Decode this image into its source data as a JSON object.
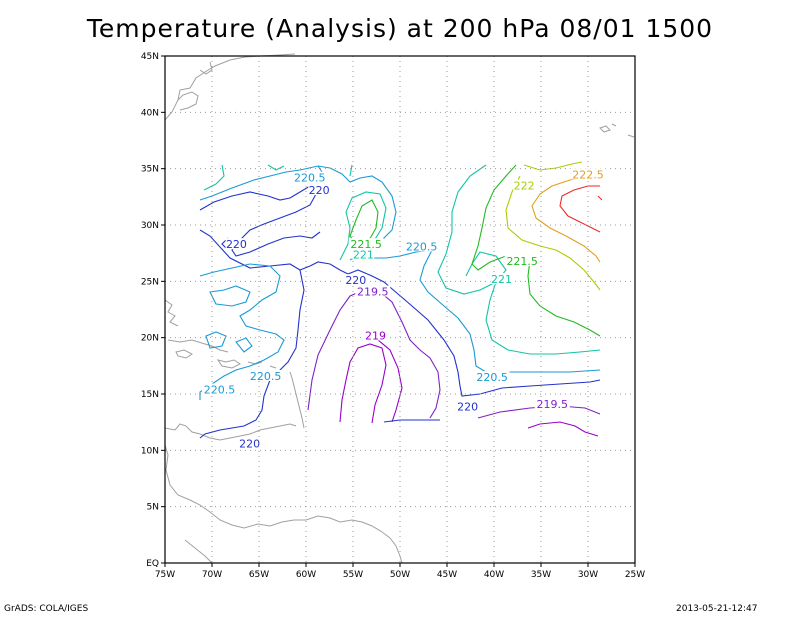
{
  "chart_data": {
    "type": "contour",
    "title": "Temperature (Analysis) at 200 hPa 08/01 1500",
    "variable": "Temperature",
    "level": "200 hPa",
    "xlim": [
      -75,
      -25
    ],
    "ylim": [
      0,
      45
    ],
    "x_ticks": [
      "75W",
      "70W",
      "65W",
      "60W",
      "55W",
      "50W",
      "45W",
      "40W",
      "35W",
      "30W",
      "25W"
    ],
    "y_ticks": [
      "EQ",
      "5N",
      "10N",
      "15N",
      "20N",
      "25N",
      "30N",
      "35N",
      "40N",
      "45N"
    ],
    "grid": true,
    "contour_interval": 0.5,
    "contour_levels": [
      {
        "value": 219.0,
        "color": "#9900cc"
      },
      {
        "value": 219.5,
        "color": "#7f22c8"
      },
      {
        "value": 220.0,
        "color": "#2233cc"
      },
      {
        "value": 220.5,
        "color": "#1a9ad6"
      },
      {
        "value": 221.0,
        "color": "#11c5a5"
      },
      {
        "value": 221.5,
        "color": "#22bb22"
      },
      {
        "value": 222.0,
        "color": "#a6d000"
      },
      {
        "value": 222.5,
        "color": "#e0a020"
      },
      {
        "value": 223.0,
        "color": "#ee2a2a"
      }
    ],
    "contour_labels": [
      {
        "text": "220.5",
        "lon": -59.6,
        "lat": 34.2,
        "color": "#1a9ad6"
      },
      {
        "text": "220",
        "lon": -58.6,
        "lat": 33.1,
        "color": "#2233cc"
      },
      {
        "text": "220",
        "lon": -67.4,
        "lat": 28.3,
        "color": "#2233cc"
      },
      {
        "text": "221.5",
        "lon": -53.6,
        "lat": 28.3,
        "color": "#22bb22"
      },
      {
        "text": "221",
        "lon": -53.9,
        "lat": 27.4,
        "color": "#11c5a5"
      },
      {
        "text": "220.5",
        "lon": -47.7,
        "lat": 28.1,
        "color": "#1a9ad6"
      },
      {
        "text": "222",
        "lon": -36.8,
        "lat": 33.5,
        "color": "#a6d000"
      },
      {
        "text": "222.5",
        "lon": -30.0,
        "lat": 34.5,
        "color": "#e0a020"
      },
      {
        "text": "221.5",
        "lon": -37.0,
        "lat": 26.8,
        "color": "#22bb22"
      },
      {
        "text": "221",
        "lon": -39.2,
        "lat": 25.2,
        "color": "#11c5a5"
      },
      {
        "text": "220",
        "lon": -54.7,
        "lat": 25.1,
        "color": "#2233cc"
      },
      {
        "text": "219.5",
        "lon": -52.9,
        "lat": 24.1,
        "color": "#7f22c8"
      },
      {
        "text": "219",
        "lon": -52.6,
        "lat": 20.2,
        "color": "#9900cc"
      },
      {
        "text": "220.5",
        "lon": -40.2,
        "lat": 16.5,
        "color": "#1a9ad6"
      },
      {
        "text": "220.5",
        "lon": -64.3,
        "lat": 16.6,
        "color": "#1a9ad6"
      },
      {
        "text": "220.5",
        "lon": -69.2,
        "lat": 15.4,
        "color": "#1a9ad6"
      },
      {
        "text": "220",
        "lon": -42.8,
        "lat": 13.9,
        "color": "#2233cc"
      },
      {
        "text": "219.5",
        "lon": -33.8,
        "lat": 14.1,
        "color": "#7f22c8"
      },
      {
        "text": "220",
        "lon": -66.0,
        "lat": 10.6,
        "color": "#2233cc"
      }
    ]
  },
  "footer": {
    "left": "GrADS: COLA/IGES",
    "right": "2013-05-21-12:47"
  }
}
